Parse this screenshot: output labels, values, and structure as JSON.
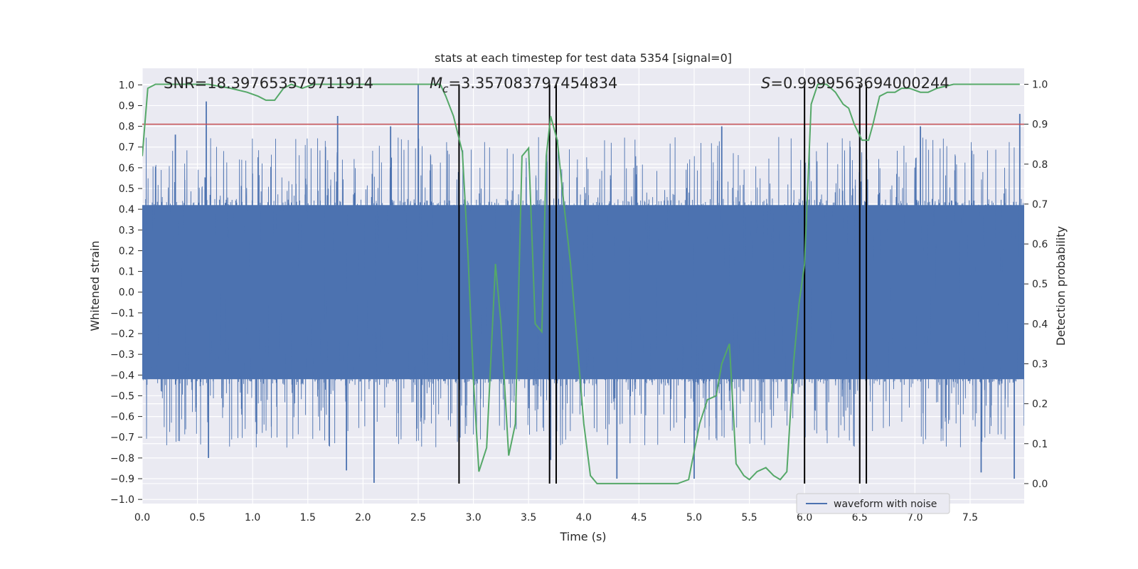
{
  "chart_data": {
    "type": "line",
    "title": "stats at each timestep for test data 5354 [signal=0]",
    "xlabel": "Time (s)",
    "ylabel_left": "Whitened strain",
    "ylabel_right": "Detection probability",
    "xlim": [
      0,
      7.99
    ],
    "ylim_left": [
      -1.02,
      1.08
    ],
    "ylim_right": [
      -0.05,
      1.04
    ],
    "x_ticks": [
      "0.0",
      "0.5",
      "1.0",
      "1.5",
      "2.0",
      "2.5",
      "3.0",
      "3.5",
      "4.0",
      "4.5",
      "5.0",
      "5.5",
      "6.0",
      "6.5",
      "7.0",
      "7.5"
    ],
    "x_tick_values": [
      0,
      0.5,
      1,
      1.5,
      2,
      2.5,
      3,
      3.5,
      4,
      4.5,
      5,
      5.5,
      6,
      6.5,
      7,
      7.5
    ],
    "y_ticks_left": [
      "1.0",
      "0.9",
      "0.8",
      "0.7",
      "0.6",
      "0.5",
      "0.4",
      "0.3",
      "0.2",
      "0.1",
      "0.0",
      "−0.1",
      "−0.2",
      "−0.3",
      "−0.4",
      "−0.5",
      "−0.6",
      "−0.7",
      "−0.8",
      "−0.9",
      "−1.0"
    ],
    "y_tick_values_left": [
      1,
      0.9,
      0.8,
      0.7,
      0.6,
      0.5,
      0.4,
      0.3,
      0.2,
      0.1,
      0,
      -0.1,
      -0.2,
      -0.3,
      -0.4,
      -0.5,
      -0.6,
      -0.7,
      -0.8,
      -0.9,
      -1
    ],
    "y_ticks_right": [
      "1.0",
      "0.9",
      "0.8",
      "0.7",
      "0.6",
      "0.5",
      "0.4",
      "0.3",
      "0.2",
      "0.1",
      "0.0"
    ],
    "y_tick_values_right": [
      1,
      0.9,
      0.8,
      0.7,
      0.6,
      0.5,
      0.4,
      0.3,
      0.2,
      0.1,
      0
    ],
    "annotations": {
      "snr": "SNR=18.397653579711914",
      "mc_symbol": "M",
      "mc_sub": "c",
      "mc_value": "=3.357083797454834",
      "s_symbol": "S",
      "s_value": "=0.9999563694000244"
    },
    "threshold": {
      "value": 0.9,
      "axis": "right",
      "color": "#c44e52"
    },
    "vertical_lines": [
      2.87,
      3.69,
      3.75,
      6.0,
      6.5,
      6.56
    ],
    "vertical_line_range": [
      0,
      1
    ],
    "waveform": {
      "name": "waveform with noise",
      "color": "#4c72b0",
      "samples": 8192,
      "core_envelope": 0.42,
      "peaks_up": [
        [
          0.58,
          0.92
        ],
        [
          2.5,
          1.0
        ],
        [
          1.77,
          0.85
        ],
        [
          3.75,
          0.84
        ],
        [
          6.5,
          0.81
        ],
        [
          7.95,
          0.86
        ],
        [
          0.3,
          0.76
        ],
        [
          2.25,
          0.8
        ],
        [
          5.25,
          0.8
        ],
        [
          7.05,
          0.8
        ]
      ],
      "peaks_down": [
        [
          2.1,
          -0.92
        ],
        [
          4.3,
          -0.9
        ],
        [
          7.9,
          -0.9
        ],
        [
          3.75,
          -0.82
        ],
        [
          5.0,
          -0.9
        ],
        [
          0.6,
          -0.8
        ],
        [
          1.85,
          -0.86
        ],
        [
          3.7,
          -0.81
        ],
        [
          7.6,
          -0.87
        ]
      ]
    },
    "probability": {
      "color": "#55a868",
      "x": [
        0,
        0.05,
        0.12,
        0.2,
        0.3,
        0.45,
        0.6,
        0.8,
        0.95,
        1.05,
        1.12,
        1.2,
        1.28,
        1.35,
        1.45,
        1.55,
        1.7,
        1.9,
        2.1,
        2.3,
        2.5,
        2.7,
        2.75,
        2.82,
        2.9,
        2.95,
        3.0,
        3.05,
        3.12,
        3.2,
        3.25,
        3.32,
        3.38,
        3.44,
        3.5,
        3.56,
        3.62,
        3.66,
        3.7,
        3.76,
        3.82,
        3.88,
        3.94,
        4.0,
        4.06,
        4.12,
        4.2,
        4.3,
        4.45,
        4.6,
        4.75,
        4.85,
        4.95,
        5.05,
        5.12,
        5.2,
        5.25,
        5.32,
        5.38,
        5.45,
        5.5,
        5.57,
        5.65,
        5.72,
        5.78,
        5.84,
        5.9,
        5.95,
        6.0,
        6.06,
        6.12,
        6.2,
        6.28,
        6.35,
        6.4,
        6.45,
        6.52,
        6.58,
        6.62,
        6.68,
        6.75,
        6.82,
        6.88,
        6.95,
        7.05,
        7.12,
        7.2,
        7.35,
        7.5,
        7.7,
        7.95
      ],
      "y": [
        0.82,
        0.99,
        1.0,
        1.0,
        1.0,
        1.0,
        1.0,
        0.99,
        0.98,
        0.97,
        0.96,
        0.96,
        0.99,
        1.0,
        0.99,
        1.0,
        1.0,
        1.0,
        1.0,
        1.0,
        1.0,
        1.0,
        0.97,
        0.92,
        0.83,
        0.58,
        0.26,
        0.03,
        0.09,
        0.55,
        0.4,
        0.07,
        0.15,
        0.82,
        0.84,
        0.4,
        0.38,
        0.82,
        0.92,
        0.86,
        0.7,
        0.55,
        0.35,
        0.15,
        0.02,
        0.0,
        0.0,
        0.0,
        0.0,
        0.0,
        0.0,
        0.0,
        0.01,
        0.15,
        0.21,
        0.22,
        0.3,
        0.35,
        0.05,
        0.02,
        0.01,
        0.03,
        0.04,
        0.02,
        0.01,
        0.03,
        0.3,
        0.45,
        0.55,
        0.95,
        1.0,
        1.0,
        0.98,
        0.95,
        0.94,
        0.9,
        0.86,
        0.86,
        0.9,
        0.97,
        0.98,
        0.98,
        0.99,
        0.99,
        0.98,
        0.98,
        0.99,
        1.0,
        1.0,
        1.0,
        1.0
      ]
    },
    "grid": true,
    "legend": {
      "placement": "lower-right"
    }
  }
}
